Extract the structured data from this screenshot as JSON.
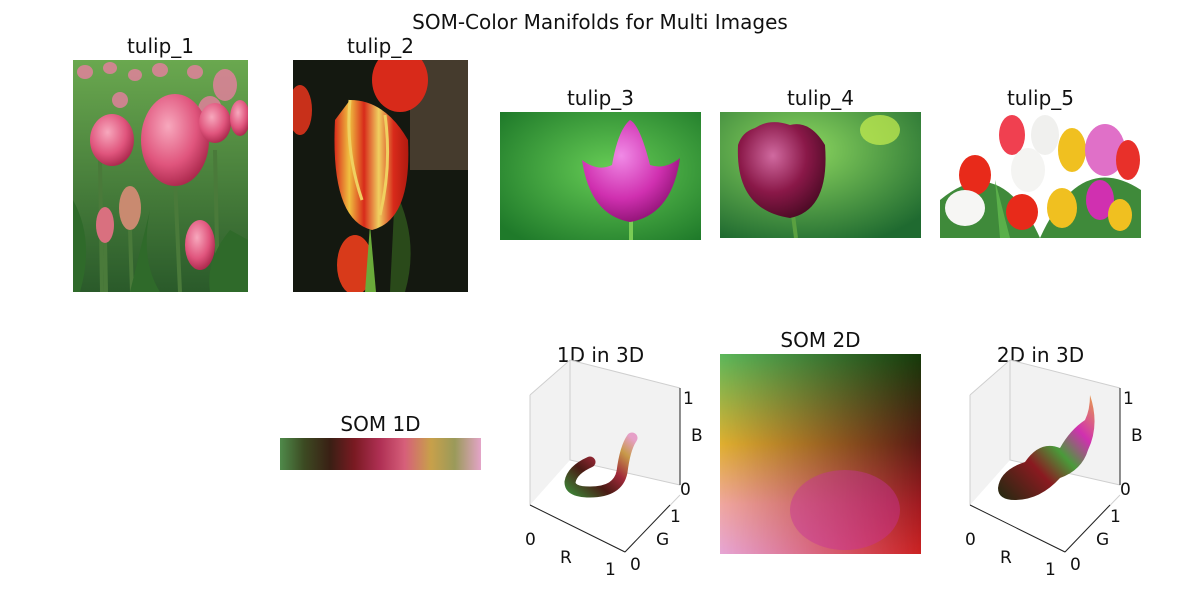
{
  "suptitle": "SOM-Color Manifolds for Multi Images",
  "images": [
    {
      "title": "tulip_1"
    },
    {
      "title": "tulip_2"
    },
    {
      "title": "tulip_3"
    },
    {
      "title": "tulip_4"
    },
    {
      "title": "tulip_5"
    }
  ],
  "chart_data": [
    {
      "type": "heatmap",
      "title": "SOM 1D",
      "colors": [
        "#4f8a4a",
        "#3c4a22",
        "#3a1f14",
        "#7a1a22",
        "#b03055",
        "#d65f7a",
        "#c8a04a",
        "#9a9a5a",
        "#e4a4c8"
      ]
    },
    {
      "type": "line",
      "title": "1D in 3D",
      "xlabel": "R",
      "ylabel": "G",
      "zlabel": "B",
      "xlim": [
        0,
        1
      ],
      "ylim": [
        0,
        1
      ],
      "zlim": [
        0,
        1
      ],
      "xticks": [
        "0",
        "1"
      ],
      "yticks": [
        "0",
        "1"
      ],
      "zticks": [
        "0",
        "1"
      ]
    },
    {
      "type": "heatmap",
      "title": "SOM 2D",
      "corner_colors": {
        "top_left": "#5cb85c",
        "top_right": "#153a0a",
        "bottom_left": "#e6a6d6",
        "bottom_right": "#cc2222"
      },
      "center_colors": {
        "left_middle": "#e0b030",
        "center": "#b07060",
        "right_middle": "#7a1a22"
      }
    },
    {
      "type": "scatter",
      "title": "2D in 3D",
      "xlabel": "R",
      "ylabel": "G",
      "zlabel": "B",
      "xlim": [
        0,
        1
      ],
      "ylim": [
        0,
        1
      ],
      "zlim": [
        0,
        1
      ],
      "xticks": [
        "0",
        "1"
      ],
      "yticks": [
        "0",
        "1"
      ],
      "zticks": [
        "0",
        "1"
      ]
    }
  ],
  "colors": {
    "tulip_pink": "#e0557d",
    "tulip_magenta": "#d030b0",
    "tulip_red": "#d82a1a",
    "tulip_yellow": "#f0c020",
    "leaf_green": "#3f8a3a"
  }
}
